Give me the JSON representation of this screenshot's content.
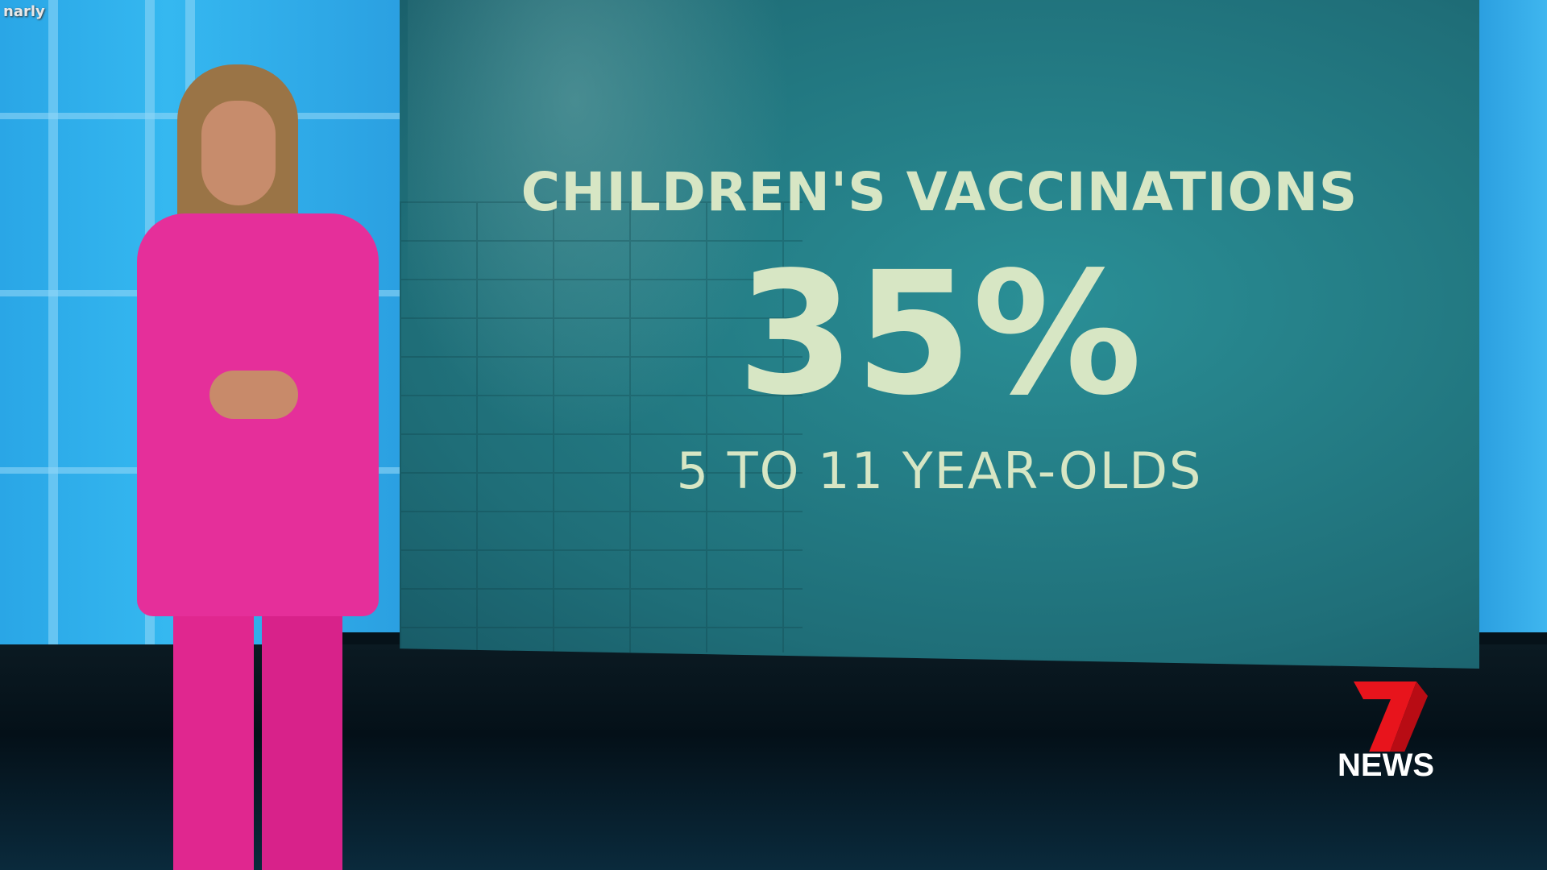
{
  "watermark": "narly",
  "graphic": {
    "title": "CHILDREN'S VACCINATIONS",
    "value": "35%",
    "subtitle": "5 TO 11 YEAR-OLDS",
    "text_color": "#d7e6c4",
    "background_color": "#1f6e78"
  },
  "logo": {
    "numeral": "7",
    "text": "NEWS",
    "numeral_color": "#e8141c"
  },
  "presenter": {
    "suit_color": "#e52f9a"
  }
}
